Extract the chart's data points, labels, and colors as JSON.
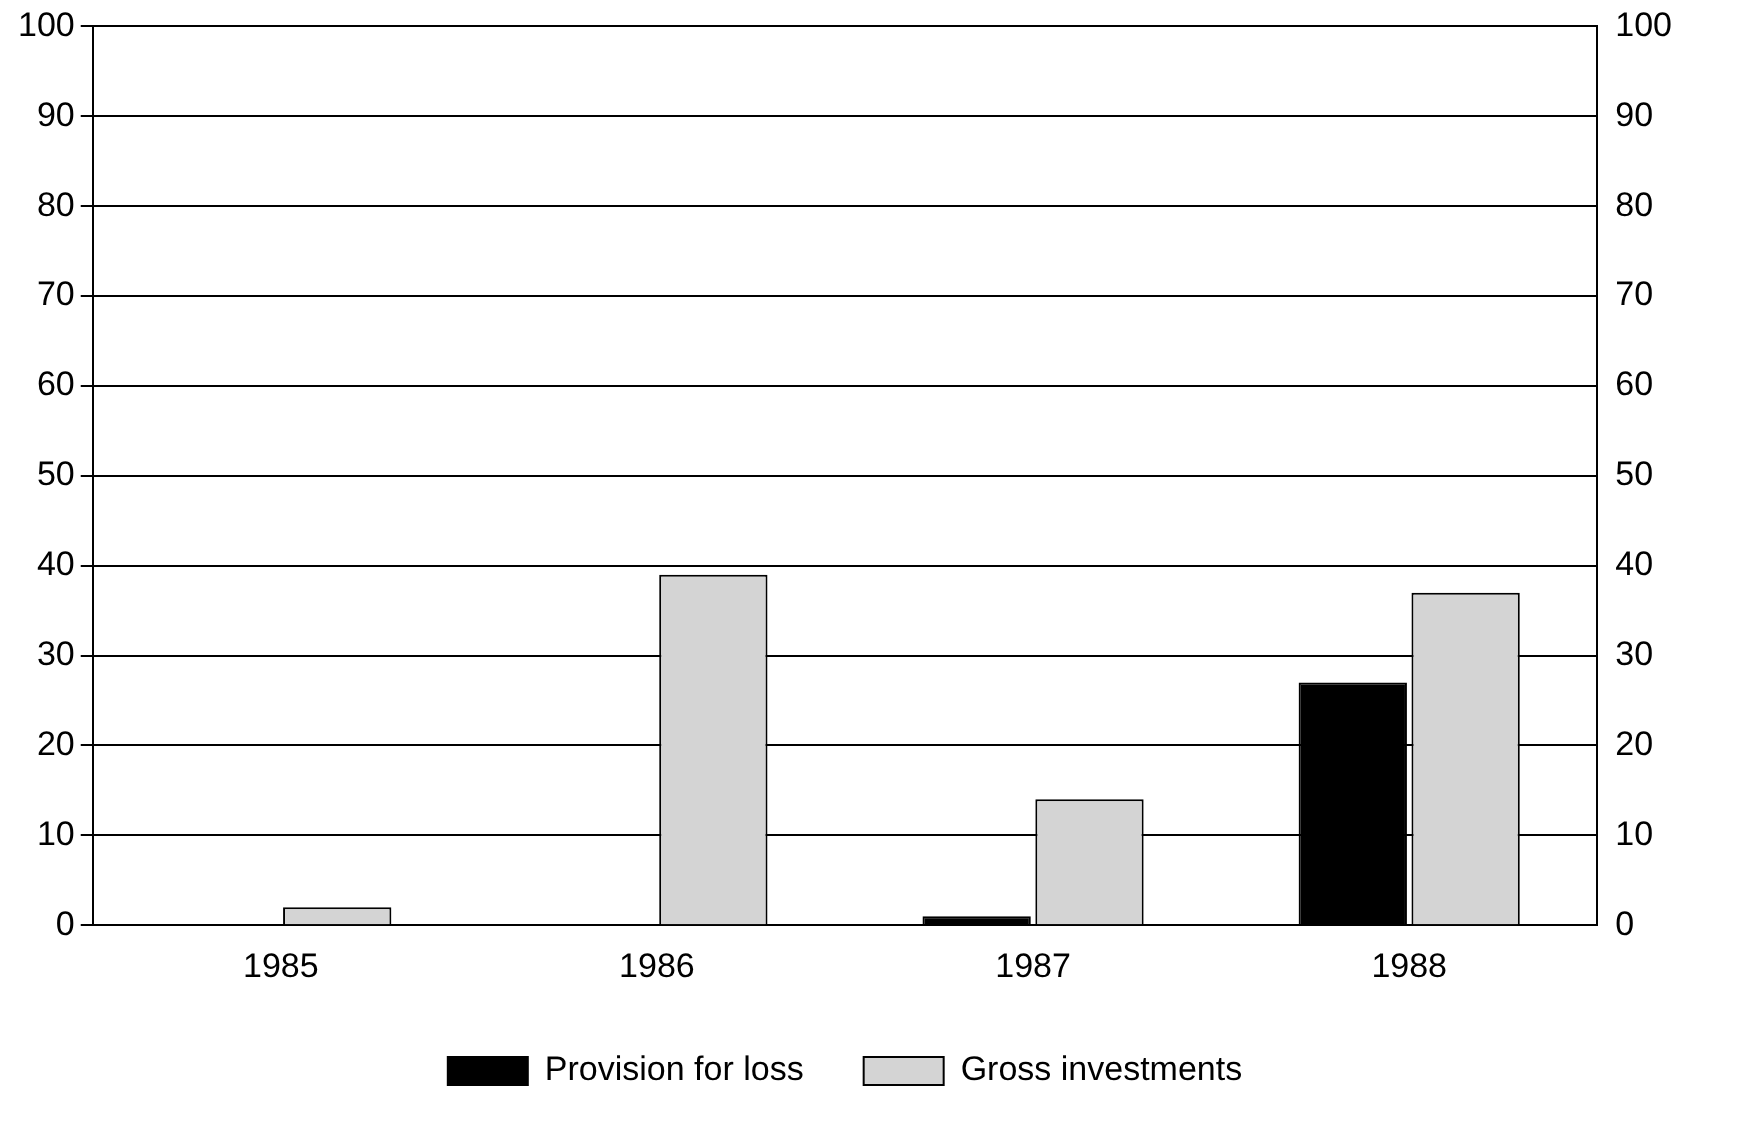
{
  "chart_data": {
    "type": "bar",
    "categories": [
      "1985",
      "1986",
      "1987",
      "1988"
    ],
    "series": [
      {
        "name": "Provision for loss",
        "color": "#000000",
        "values": [
          0,
          0,
          1,
          27
        ]
      },
      {
        "name": "Gross investments",
        "color": "#d4d4d4",
        "values": [
          2,
          39,
          14,
          37
        ]
      }
    ],
    "ylim": [
      0,
      100
    ],
    "yticks": [
      0,
      10,
      20,
      30,
      40,
      50,
      60,
      70,
      80,
      90,
      100
    ],
    "y2lim": [
      0,
      100
    ],
    "y2ticks": [
      0,
      10,
      20,
      30,
      40,
      50,
      60,
      70,
      80,
      90,
      100
    ],
    "grid": "y",
    "legend": "bottom"
  }
}
